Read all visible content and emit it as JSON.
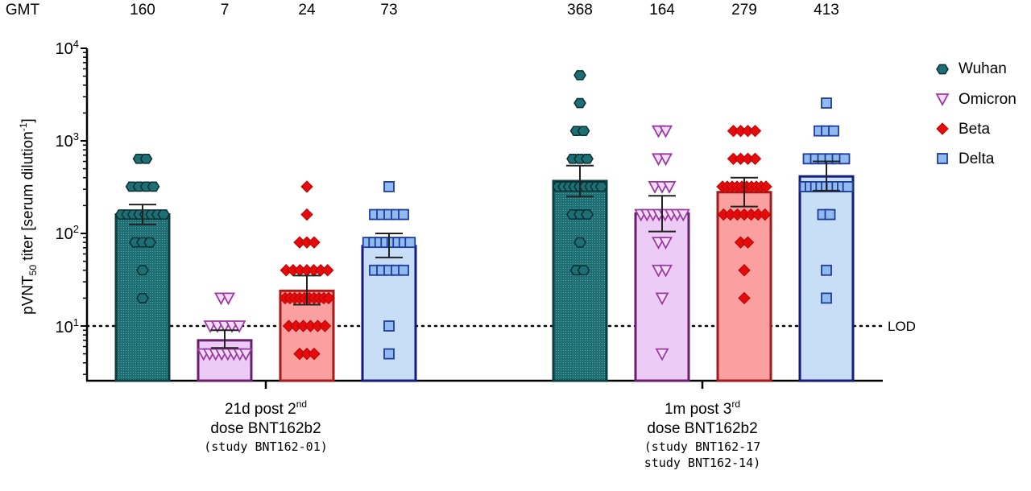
{
  "chart_data": {
    "type": "bar",
    "ylabel": {
      "main": "pVNT",
      "sub": "50",
      "rest": " titer [serum dilution",
      "sup": "-1",
      "close": "]"
    },
    "yscale": "log",
    "ylim": [
      2.6,
      10000
    ],
    "yticks": [
      {
        "base": "10",
        "exp": "1",
        "value": 10
      },
      {
        "base": "10",
        "exp": "2",
        "value": 100
      },
      {
        "base": "10",
        "exp": "3",
        "value": 1000
      },
      {
        "base": "10",
        "exp": "4",
        "value": 10000
      }
    ],
    "gmt_label": "GMT",
    "reference_line": {
      "label": "LOD",
      "value": 10,
      "style": "dotted"
    },
    "groups": [
      {
        "line1a": "21d post 2",
        "line1sup": "nd",
        "line2": "dose BNT162b2",
        "study1": "(study BNT162-01)",
        "study2": ""
      },
      {
        "line1a": "1m post 3",
        "line1sup": "rd",
        "line2": "dose BNT162b2",
        "study1": "(study BNT162-17",
        "study2": "study BNT162-14)"
      }
    ],
    "series": [
      {
        "name": "Wuhan",
        "fill": "#1d6f74",
        "stroke": "#0e3e42",
        "marker": "hexagon",
        "marker_fill": "#1d6f74",
        "marker_stroke": "#0b2f32",
        "gmt": [
          160,
          368
        ],
        "gmt_labels": [
          "160",
          "368"
        ],
        "err": [
          [
            125,
            205
          ],
          [
            250,
            540
          ]
        ],
        "points": [
          [
            [
              640,
              2
            ],
            [
              320,
              4
            ],
            [
              160,
              8
            ],
            [
              80,
              3
            ],
            [
              40,
              1
            ],
            [
              20,
              1
            ]
          ],
          [
            [
              5120,
              1
            ],
            [
              2560,
              1
            ],
            [
              1280,
              2
            ],
            [
              640,
              3
            ],
            [
              320,
              9
            ],
            [
              160,
              3
            ],
            [
              80,
              1
            ],
            [
              40,
              2
            ]
          ]
        ]
      },
      {
        "name": "Omicron",
        "fill": "#ecccf6",
        "stroke": "#6a1f6e",
        "marker": "triangle-down",
        "marker_fill": "#f3dcfa",
        "marker_stroke": "#9a3aa0",
        "gmt": [
          7,
          164
        ],
        "gmt_labels": [
          "7",
          "164"
        ],
        "err": [
          [
            5.8,
            9
          ],
          [
            105,
            255
          ]
        ],
        "points": [
          [
            [
              20,
              2
            ],
            [
              10,
              5
            ],
            [
              5,
              8
            ]
          ],
          [
            [
              1280,
              2
            ],
            [
              640,
              2
            ],
            [
              320,
              3
            ],
            [
              160,
              8
            ],
            [
              80,
              2
            ],
            [
              40,
              2
            ],
            [
              20,
              1
            ],
            [
              5,
              1
            ]
          ]
        ]
      },
      {
        "name": "Beta",
        "fill": "#faa0a0",
        "stroke": "#a31b1b",
        "marker": "diamond",
        "marker_fill": "#e30b0b",
        "marker_stroke": "#c00000",
        "gmt": [
          24,
          279
        ],
        "gmt_labels": [
          "24",
          "279"
        ],
        "err": [
          [
            17,
            35
          ],
          [
            195,
            400
          ]
        ],
        "points": [
          [
            [
              320,
              1
            ],
            [
              160,
              1
            ],
            [
              80,
              3
            ],
            [
              40,
              7
            ],
            [
              20,
              10
            ],
            [
              10,
              6
            ],
            [
              5,
              3
            ]
          ],
          [
            [
              1280,
              4
            ],
            [
              640,
              4
            ],
            [
              320,
              10
            ],
            [
              160,
              7
            ],
            [
              80,
              2
            ],
            [
              40,
              1
            ],
            [
              20,
              1
            ]
          ]
        ]
      },
      {
        "name": "Delta",
        "fill": "#c8ddf6",
        "stroke": "#161b7e",
        "marker": "square",
        "marker_fill": "#91baef",
        "marker_stroke": "#1e3c9a",
        "gmt": [
          73,
          413
        ],
        "gmt_labels": [
          "73",
          "413"
        ],
        "err": [
          [
            55,
            100
          ],
          [
            290,
            600
          ]
        ],
        "points": [
          [
            [
              320,
              1
            ],
            [
              160,
              5
            ],
            [
              80,
              8
            ],
            [
              40,
              5
            ],
            [
              10,
              1
            ],
            [
              5,
              1
            ]
          ],
          [
            [
              2560,
              1
            ],
            [
              1280,
              3
            ],
            [
              640,
              6
            ],
            [
              320,
              9
            ],
            [
              160,
              2
            ],
            [
              40,
              1
            ],
            [
              20,
              1
            ]
          ]
        ]
      }
    ],
    "legend": "right",
    "grid": false
  }
}
